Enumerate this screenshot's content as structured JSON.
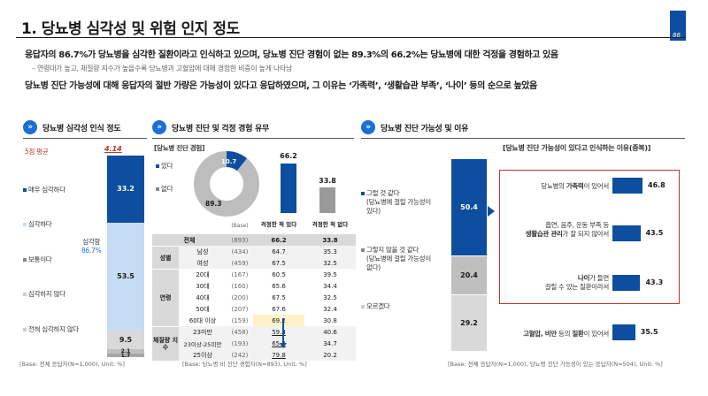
{
  "header": {
    "title": "1. 당뇨병 심각성 및 위험 인지 정도",
    "page_number": "86",
    "line1": "응답자의 86.7%가 당뇨병을 심각한 질환이라고 인식하고 있으며, 당뇨병 진단 경험이 없는 89.3%의 66.2%는 당뇨병에 대한 걱정을 경험하고 있음",
    "line1_sub": "– 연령대가 높고, 체질량 지수가 높을수록 당뇨병과 고혈압에 대해 경험한 비중이 높게 나타남",
    "line2": "당뇨병 진단 가능성에 대해 응답자의 절반 가량은 가능성이 있다고 응답하였으며, 그 이유는 ‘가족력’, ‘생활습관 부족’, ‘나이’ 등의 순으로 높았음"
  },
  "colors": {
    "accent": "#0e4ea0",
    "light": "#c6dcf5",
    "gray": "#888888",
    "red": "#c0392b",
    "highlight": "#fdf2c8"
  },
  "section1": {
    "title": "당뇨병 심각성 인식 정도",
    "avg_label": "5점 평균",
    "avg_value": "4.14",
    "serious_label": "심각함",
    "serious_value": "86.7%",
    "base": "[Base: 전체 응답자(N=1,000), Unit: %]"
  },
  "section2": {
    "title": "당뇨병 진단 및 걱정 경험 유무",
    "sub_title": "[당뇨병 진단 경험]",
    "legend_yes": "있다",
    "legend_no": "없다",
    "donut_yes": "10.7",
    "donut_no": "89.3",
    "base_col": "(Base)",
    "col1": "걱정한 적 있다",
    "col2": "걱정한 적 없다",
    "base": "[Base: 당뇨병 비 진단 경험자(N=893), Unit: %]",
    "groups": {
      "gender": "성별",
      "age": "연령",
      "bmi": "체질량 지수"
    }
  },
  "section3": {
    "title": "당뇨병 진단 가능성 및 이유",
    "reason_title": "[당뇨병 진단 가능성이 있다고 인식하는 이유(중복)]",
    "opt1": "그럴 것 같다",
    "opt1_sub": "(당뇨병에 걸릴 가능성이 있다)",
    "opt2": "그렇지 않을 것 같다",
    "opt2_sub": "(당뇨병에 걸릴 가능성이 없다)",
    "opt3": "모르겠다",
    "r1_pre": "당뇨병의 ",
    "r1_bold": "가족력",
    "r1_post": "이 있어서",
    "r2_pre": "흡연, 음주, 운동 부족 등",
    "r2_bold": "생활습관 관리",
    "r2_post": "가 잘 되지 않아서",
    "r3_bold": "나이",
    "r3_post": "가 들면",
    "r3_line2": "걸릴 수 있는 질환이라서",
    "r4_bold": "고혈압, 비만",
    "r4_mid": " 등의 ",
    "r4_bold2": "질환",
    "r4_post": "이 있어서",
    "base": "[Base: 전체 응답자(N=1,000), 당뇨병 진단 가능성이 있는 응답자(N=504), Unit: %]"
  },
  "chart_data": [
    {
      "type": "bar",
      "title": "당뇨병 심각성 인식 정도",
      "categories": [
        "매우 심각하다",
        "심각하다",
        "보통이다",
        "심각하지 않다",
        "전혀 심각하지 않다"
      ],
      "values": [
        33.2,
        53.5,
        9.5,
        2.1,
        1.7
      ],
      "labels": [
        "33.2",
        "53.5",
        "9.5",
        "2.1",
        "1.7"
      ]
    },
    {
      "type": "pie",
      "title": "당뇨병 진단 경험",
      "categories": [
        "있다",
        "없다"
      ],
      "values": [
        10.7,
        89.3
      ]
    },
    {
      "type": "bar",
      "title": "당뇨병 진단 및 걱정 경험 유무",
      "categories": [
        "걱정한 적 있다",
        "걱정한 적 없다"
      ],
      "values": [
        66.2,
        33.8
      ],
      "labels": [
        "66.2",
        "33.8"
      ]
    },
    {
      "type": "table",
      "headers": [
        "",
        "",
        "(Base)",
        "걱정한 적 있다",
        "걱정한 적 없다"
      ],
      "rows": [
        [
          "전체",
          "",
          "(893)",
          "66.2",
          "33.8"
        ],
        [
          "성별",
          "남성",
          "(434)",
          "64.7",
          "35.3"
        ],
        [
          "",
          "여성",
          "(459)",
          "67.5",
          "32.5"
        ],
        [
          "연령",
          "20대",
          "(167)",
          "60.5",
          "39.5"
        ],
        [
          "",
          "30대",
          "(160)",
          "65.6",
          "34.4"
        ],
        [
          "",
          "40대",
          "(200)",
          "67.5",
          "32.5"
        ],
        [
          "",
          "50대",
          "(207)",
          "67.6",
          "32.4"
        ],
        [
          "",
          "60대 이상",
          "(159)",
          "69.2",
          "30.8"
        ],
        [
          "체질량 지수",
          "23미만",
          "(458)",
          "59.4",
          "40.6"
        ],
        [
          "",
          "23이상-25미만",
          "(193)",
          "65.3",
          "34.7"
        ],
        [
          "",
          "25이상",
          "(242)",
          "79.8",
          "20.2"
        ]
      ]
    },
    {
      "type": "bar",
      "title": "당뇨병 진단 가능성",
      "categories": [
        "그럴 것 같다",
        "그렇지 않을 것 같다",
        "모르겠다"
      ],
      "values": [
        50.4,
        20.4,
        29.2
      ],
      "labels": [
        "50.4",
        "20.4",
        "29.2"
      ]
    },
    {
      "type": "bar",
      "title": "당뇨병 진단 가능성이 있다고 인식하는 이유(중복)",
      "categories": [
        "가족력",
        "생활습관 관리",
        "나이",
        "고혈압, 비만 등의 질환"
      ],
      "values": [
        46.8,
        43.5,
        43.3,
        35.5
      ],
      "labels": [
        "46.8",
        "43.5",
        "43.3",
        "35.5"
      ]
    }
  ]
}
